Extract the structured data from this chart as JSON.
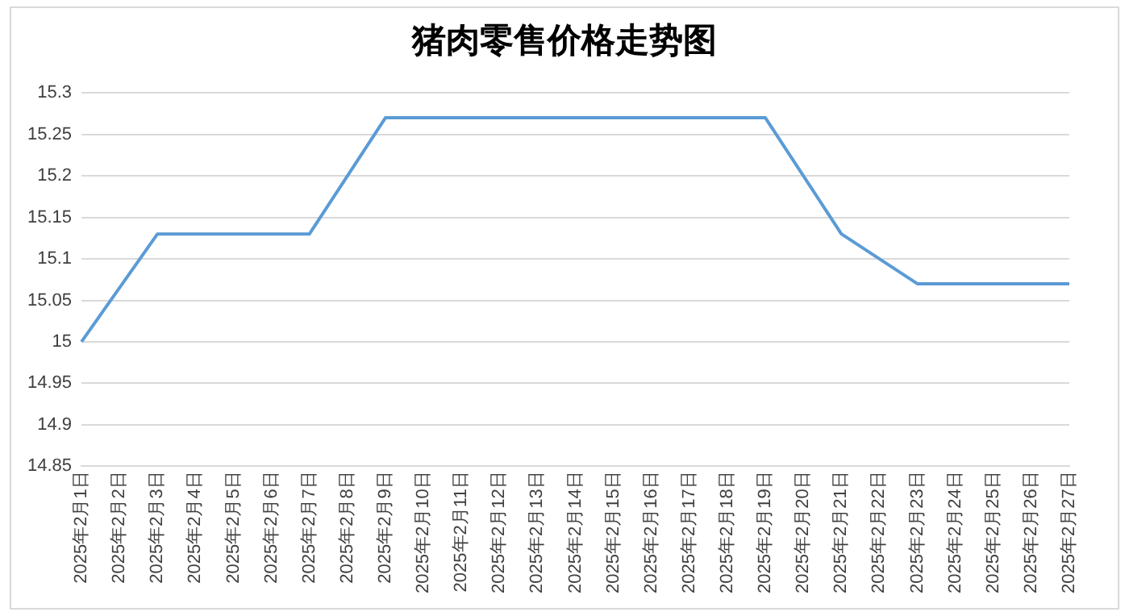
{
  "chart_data": {
    "type": "line",
    "title": "猪肉零售价格走势图",
    "categories": [
      "2025年2月1日",
      "2025年2月2日",
      "2025年2月3日",
      "2025年2月4日",
      "2025年2月5日",
      "2025年2月6日",
      "2025年2月7日",
      "2025年2月8日",
      "2025年2月9日",
      "2025年2月10日",
      "2025年2月11日",
      "2025年2月12日",
      "2025年2月13日",
      "2025年2月14日",
      "2025年2月15日",
      "2025年2月16日",
      "2025年2月17日",
      "2025年2月18日",
      "2025年2月19日",
      "2025年2月20日",
      "2025年2月21日",
      "2025年2月22日",
      "2025年2月23日",
      "2025年2月24日",
      "2025年2月25日",
      "2025年2月26日",
      "2025年2月27日"
    ],
    "series": [
      {
        "color": "#5b9bd5",
        "values": [
          15.0,
          null,
          15.13,
          null,
          15.13,
          null,
          15.13,
          null,
          15.27,
          null,
          15.27,
          null,
          15.27,
          null,
          15.27,
          null,
          15.27,
          null,
          15.27,
          null,
          15.13,
          null,
          15.07,
          null,
          15.07,
          null,
          15.07
        ]
      }
    ],
    "ylim": [
      14.85,
      15.3
    ],
    "yticks": [
      14.85,
      14.9,
      14.95,
      15,
      15.05,
      15.1,
      15.15,
      15.2,
      15.25,
      15.3
    ],
    "grid": "y",
    "legend": false,
    "marker": "none",
    "line_style": "solid"
  }
}
